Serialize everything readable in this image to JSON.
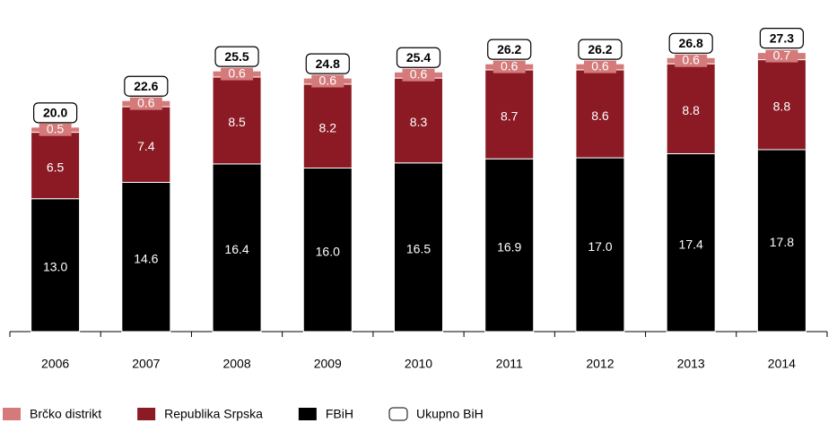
{
  "chart_data": {
    "type": "stacked-bar",
    "categories": [
      "2006",
      "2007",
      "2008",
      "2009",
      "2010",
      "2011",
      "2012",
      "2013",
      "2014"
    ],
    "series": [
      {
        "name": "Brčko distrikt",
        "color": "#d47a7a",
        "values": [
          0.5,
          0.6,
          0.6,
          0.6,
          0.6,
          0.6,
          0.6,
          0.6,
          0.7
        ]
      },
      {
        "name": "Republika Srpska",
        "color": "#8b1a24",
        "values": [
          6.5,
          7.4,
          8.5,
          8.2,
          8.3,
          8.7,
          8.6,
          8.8,
          8.8
        ]
      },
      {
        "name": "FBiH",
        "color": "#000000",
        "values": [
          13.0,
          14.6,
          16.4,
          16.0,
          16.5,
          16.9,
          17.0,
          17.4,
          17.8
        ],
        "value_labels": [
          "13.0",
          "14.6",
          "16.4",
          "16.0",
          "16.5",
          "16.9",
          "17.0",
          "17.4",
          "17.8"
        ]
      }
    ],
    "totals": {
      "name": "Ukupno BiH",
      "values": [
        20.0,
        22.6,
        25.5,
        24.8,
        25.4,
        26.2,
        26.2,
        26.8,
        27.3
      ],
      "value_labels": [
        "20.0",
        "22.6",
        "25.5",
        "24.8",
        "25.4",
        "26.2",
        "26.2",
        "26.8",
        "27.3"
      ]
    },
    "ylim": [
      0,
      32
    ]
  }
}
